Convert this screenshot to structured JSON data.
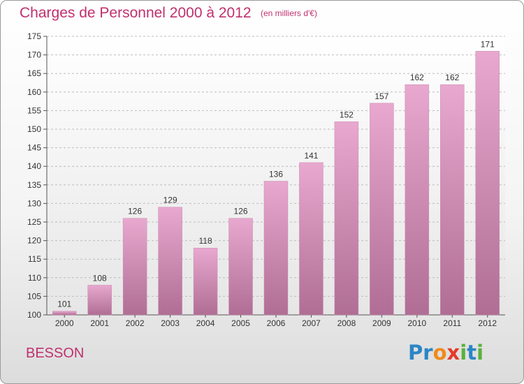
{
  "title": "Charges de Personnel 2000 à 2012",
  "subtitle": "(en milliers d'€)",
  "commune": "BESSON",
  "logo": {
    "letters": [
      "P",
      "r",
      "o",
      "x",
      "i",
      "t",
      "i"
    ],
    "colors": [
      "#2b86c6",
      "#2b86c6",
      "#f08a1c",
      "#e53a2a",
      "#58b23b",
      "#2b86c6",
      "#58b23b"
    ]
  },
  "colors": {
    "bar_top": "#e8a8cf",
    "bar_bottom": "#b06e94",
    "title": "#c0306f"
  },
  "chart_data": {
    "type": "bar",
    "title": "Charges de Personnel 2000 à 2012",
    "subtitle": "(en milliers d'€)",
    "categories": [
      "2000",
      "2001",
      "2002",
      "2003",
      "2004",
      "2005",
      "2006",
      "2007",
      "2008",
      "2009",
      "2010",
      "2011",
      "2012"
    ],
    "values": [
      101,
      108,
      126,
      129,
      118,
      126,
      136,
      141,
      152,
      157,
      162,
      162,
      171
    ],
    "data_labels": [
      "101",
      "108",
      "126",
      "129",
      "118",
      "126",
      "136",
      "141",
      "152",
      "157",
      "162",
      "162",
      "171"
    ],
    "ylim": [
      100,
      175
    ],
    "yticks": [
      100,
      105,
      110,
      115,
      120,
      125,
      130,
      135,
      140,
      145,
      150,
      155,
      160,
      165,
      170,
      175
    ],
    "grid": true,
    "legend": "none"
  }
}
